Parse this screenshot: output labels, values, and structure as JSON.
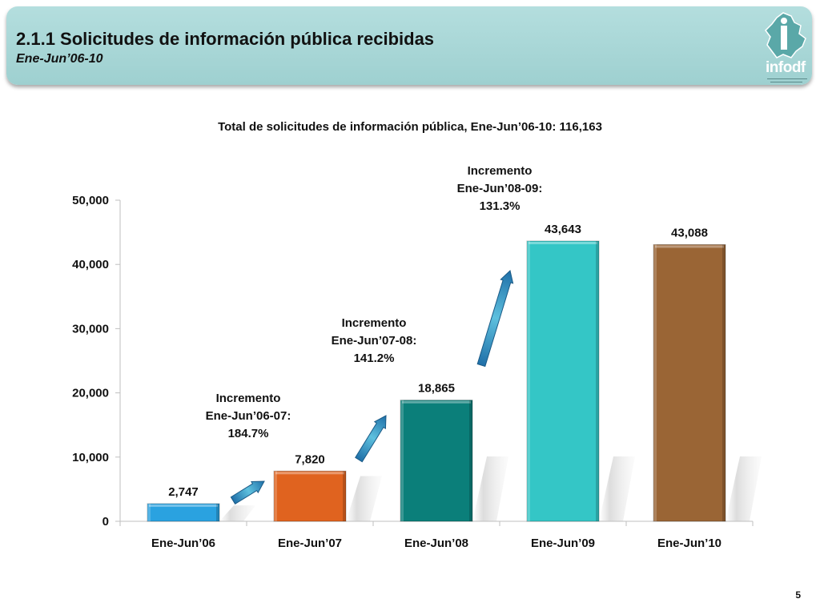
{
  "header": {
    "title": "2.1.1 Solicitudes de información pública recibidas",
    "subtitle": "Ene-Jun’06-10",
    "logo_text": "infodf"
  },
  "chart_data": {
    "type": "bar",
    "title": "Total de solicitudes de información pública, Ene-Jun’06-10: 116,163",
    "categories": [
      "Ene-Jun’06",
      "Ene-Jun’07",
      "Ene-Jun’08",
      "Ene-Jun’09",
      "Ene-Jun’10"
    ],
    "values": [
      2747,
      7820,
      18865,
      43643,
      43088
    ],
    "value_labels": [
      "2,747",
      "7,820",
      "18,865",
      "43,643",
      "43,088"
    ],
    "bar_colors": [
      "#2aa2e0",
      "#e0631f",
      "#0b7f7a",
      "#34c6c6",
      "#9a6535"
    ],
    "ylim": [
      0,
      50000
    ],
    "yticks": [
      0,
      10000,
      20000,
      30000,
      40000,
      50000
    ],
    "ytick_labels": [
      "0",
      "10,000",
      "20,000",
      "30,000",
      "40,000",
      "50,000"
    ],
    "xlabel": "",
    "ylabel": "",
    "grid": false,
    "annotations": [
      {
        "line1": "Incremento",
        "line2": "Ene-Jun’06-07:",
        "line3": "184.7%"
      },
      {
        "line1": "Incremento",
        "line2": "Ene-Jun’07-08:",
        "line3": "141.2%"
      },
      {
        "line1": "Incremento",
        "line2": "Ene-Jun’08-09:",
        "line3": "131.3%"
      }
    ]
  },
  "page_number": "5"
}
